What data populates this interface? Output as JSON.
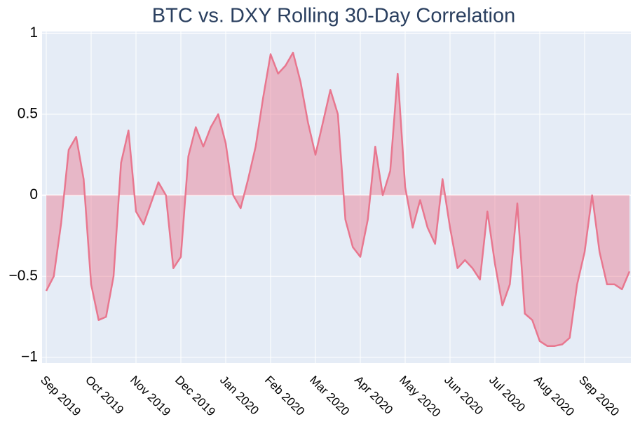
{
  "chart_data": {
    "type": "area",
    "title": "BTC vs. DXY Rolling 30-Day Correlation",
    "color": "#e8778f",
    "fill": "rgba(232,119,143,0.45)",
    "grid": true,
    "values": [
      -0.59,
      -0.5,
      -0.17,
      0.28,
      0.36,
      0.1,
      -0.55,
      -0.77,
      -0.75,
      -0.5,
      0.2,
      0.4,
      -0.1,
      -0.18,
      -0.05,
      0.08,
      0.0,
      -0.45,
      -0.38,
      0.24,
      0.42,
      0.3,
      0.42,
      0.5,
      0.32,
      0.0,
      -0.08,
      0.1,
      0.3,
      0.6,
      0.87,
      0.75,
      0.8,
      0.88,
      0.7,
      0.45,
      0.25,
      0.45,
      0.65,
      0.5,
      -0.15,
      -0.32,
      -0.38,
      -0.15,
      0.3,
      0.0,
      0.15,
      0.75,
      0.05,
      -0.2,
      -0.03,
      -0.2,
      -0.3,
      0.1,
      -0.2,
      -0.45,
      -0.4,
      -0.45,
      -0.52,
      -0.1,
      -0.42,
      -0.68,
      -0.55,
      -0.05,
      -0.73,
      -0.77,
      -0.9,
      -0.93,
      -0.93,
      -0.92,
      -0.88,
      -0.55,
      -0.35,
      0.0,
      -0.35,
      -0.55,
      -0.55,
      -0.58,
      -0.47
    ],
    "xlim": [
      0,
      78
    ],
    "xticks": [
      {
        "value": 0,
        "label": "Sep 2019"
      },
      {
        "value": 6,
        "label": "Oct 2019"
      },
      {
        "value": 12,
        "label": "Nov 2019"
      },
      {
        "value": 18,
        "label": "Dec 2019"
      },
      {
        "value": 24,
        "label": "Jan 2020"
      },
      {
        "value": 30,
        "label": "Feb 2020"
      },
      {
        "value": 36,
        "label": "Mar 2020"
      },
      {
        "value": 42,
        "label": "Apr 2020"
      },
      {
        "value": 48,
        "label": "May 2020"
      },
      {
        "value": 54,
        "label": "Jun 2020"
      },
      {
        "value": 60,
        "label": "Jul 2020"
      },
      {
        "value": 66,
        "label": "Aug 2020"
      },
      {
        "value": 72,
        "label": "Sep 2020"
      }
    ],
    "ylim": [
      -1.035,
      1.01
    ],
    "yticks": [
      1,
      0.5,
      0,
      {
        "value": -0.5,
        "label": "−0.5"
      },
      {
        "value": -1,
        "label": "−1"
      }
    ]
  }
}
